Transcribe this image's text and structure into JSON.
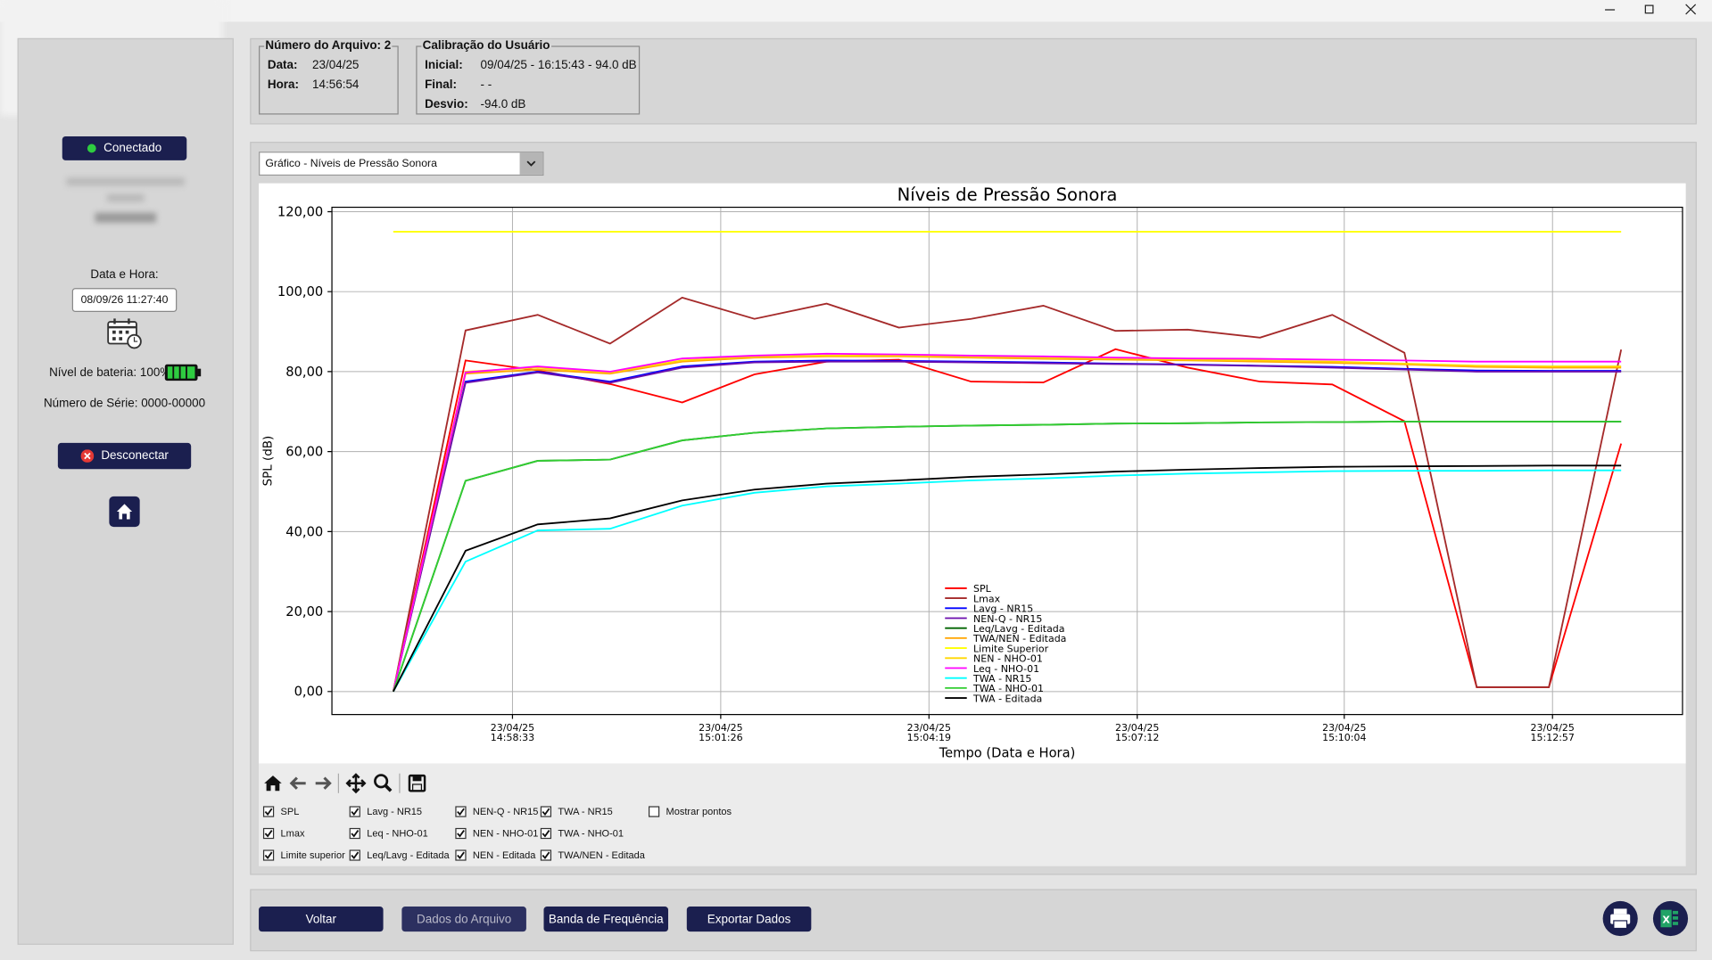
{
  "sidebar": {
    "status": "Conectado",
    "datetime_label": "Data e Hora:",
    "datetime": "08/09/26 11:27:40",
    "battery": "Nível de bateria: 100%",
    "serial": "Número de Série: 0000-00000",
    "disconnect": "Desconectar"
  },
  "file_info": {
    "title": "Número do Arquivo: 2",
    "rows": [
      [
        "Data:",
        "23/04/25"
      ],
      [
        "Hora:",
        "14:56:54"
      ]
    ]
  },
  "calibration": {
    "title": "Calibração do Usuário",
    "rows": [
      [
        "Inicial:",
        "09/04/25 - 16:15:43 - 94.0 dB"
      ],
      [
        "Final:",
        "- -"
      ],
      [
        "Desvio:",
        "-94.0 dB"
      ]
    ]
  },
  "selector": "Gráfico - Níveis de Pressão Sonora",
  "chart_data": {
    "type": "line",
    "title": "Níveis de Pressão Sonora",
    "xlabel": "Tempo (Data e Hora)",
    "ylabel": "SPL (dB)",
    "x": [
      "23/04/25 14:56:54",
      "23/04/25 14:57:54",
      "23/04/25 14:58:54",
      "23/04/25 14:59:54",
      "23/04/25 15:00:54",
      "23/04/25 15:01:54",
      "23/04/25 15:02:54",
      "23/04/25 15:03:54",
      "23/04/25 15:04:54",
      "23/04/25 15:05:54",
      "23/04/25 15:06:54",
      "23/04/25 15:07:54",
      "23/04/25 15:08:54",
      "23/04/25 15:09:54",
      "23/04/25 15:10:54",
      "23/04/25 15:11:54",
      "23/04/25 15:12:54",
      "23/04/25 15:13:54"
    ],
    "xlim": [
      "23/04/25 14:56:03",
      "23/04/25 15:14:45"
    ],
    "xticks": [
      {
        "date": "23/04/25",
        "time": "14:58:33"
      },
      {
        "date": "23/04/25",
        "time": "15:01:26"
      },
      {
        "date": "23/04/25",
        "time": "15:04:19"
      },
      {
        "date": "23/04/25",
        "time": "15:07:12"
      },
      {
        "date": "23/04/25",
        "time": "15:10:04"
      },
      {
        "date": "23/04/25",
        "time": "15:12:57"
      }
    ],
    "ylim": [
      -5.75,
      121.1
    ],
    "yticks": [
      {
        "value": 0,
        "label": "0,00"
      },
      {
        "value": 20,
        "label": "20,00"
      },
      {
        "value": 40,
        "label": "40,00"
      },
      {
        "value": 60,
        "label": "60,00"
      },
      {
        "value": 80,
        "label": "80,00"
      },
      {
        "value": 100,
        "label": "100,00"
      },
      {
        "value": 120,
        "label": "120,00"
      }
    ],
    "grid": true,
    "legend": "lower center",
    "series": [
      {
        "name": "SPL",
        "color": "#ff0000",
        "values": [
          0,
          82.8,
          80.3,
          76.9,
          72.3,
          79.3,
          82.5,
          83,
          77.5,
          77.3,
          85.6,
          81,
          77.5,
          76.8,
          67.6,
          1.1,
          1.1,
          62
        ]
      },
      {
        "name": "Lmax",
        "color": "#a52a2a",
        "values": [
          0,
          90.3,
          94.2,
          87,
          98.5,
          93.2,
          97,
          91,
          93.2,
          96.5,
          90.2,
          90.5,
          88.5,
          94.2,
          84.7,
          1.1,
          1.1,
          85.5
        ]
      },
      {
        "name": "Lavg - NR15",
        "color": "#0000ff",
        "values": [
          0,
          77.5,
          80,
          77.5,
          81.3,
          82.5,
          82.8,
          82.7,
          82.5,
          82.3,
          82,
          81.8,
          81.5,
          81.2,
          80.7,
          80.3,
          80.2,
          80.2
        ]
      },
      {
        "name": "NEN-Q - NR15",
        "color": "#6a0dad",
        "values": [
          0,
          77.2,
          79.8,
          77.2,
          81,
          82.3,
          82.5,
          82.5,
          82.3,
          82.1,
          81.9,
          81.7,
          81.4,
          81,
          80.5,
          80,
          80,
          80
        ]
      },
      {
        "name": "Leq/Lavg - Editada",
        "color": "#006400",
        "values": [
          0,
          52.7,
          57.7,
          58,
          62.8,
          64.7,
          65.8,
          66.2,
          66.5,
          66.7,
          67,
          67.1,
          67.3,
          67.4,
          67.5,
          67.5,
          67.5,
          67.5
        ]
      },
      {
        "name": "TWA/NEN - Editada",
        "color": "#ffa500",
        "values": [
          0,
          79.5,
          80.5,
          79.5,
          82.5,
          83.5,
          83.8,
          83.8,
          83.5,
          83.2,
          83,
          82.8,
          82.5,
          82.2,
          81.8,
          81.2,
          81,
          81
        ]
      },
      {
        "name": "Limite Superior",
        "color": "#ffff00",
        "values": [
          115,
          115,
          115,
          115,
          115,
          115,
          115,
          115,
          115,
          115,
          115,
          115,
          115,
          115,
          115,
          115,
          115,
          115
        ]
      },
      {
        "name": "NEN - NHO-01",
        "color": "#ffd700",
        "values": [
          0,
          80,
          81,
          79.8,
          82.8,
          83.8,
          84,
          84,
          83.8,
          83.5,
          83.3,
          83,
          82.8,
          82.5,
          82,
          81.5,
          81.3,
          81.3
        ]
      },
      {
        "name": "Leq - NHO-01",
        "color": "#ff00ff",
        "values": [
          0,
          79.8,
          81.3,
          80,
          83.3,
          84,
          84.5,
          84.3,
          84,
          83.8,
          83.5,
          83.3,
          83.2,
          83,
          82.8,
          82.5,
          82.5,
          82.5
        ]
      },
      {
        "name": "TWA - NR15",
        "color": "#00ffff",
        "values": [
          0,
          32.5,
          40.3,
          40.7,
          46.5,
          49.7,
          51.3,
          52,
          52.8,
          53.3,
          54,
          54.5,
          54.8,
          55.1,
          55.2,
          55.2,
          55.3,
          55.3
        ]
      },
      {
        "name": "TWA - NHO-01",
        "color": "#32cd32",
        "values": [
          0,
          52.7,
          57.7,
          58,
          62.8,
          64.7,
          65.8,
          66.2,
          66.5,
          66.7,
          67,
          67.1,
          67.3,
          67.4,
          67.5,
          67.5,
          67.5,
          67.5
        ]
      },
      {
        "name": "TWA - Editada",
        "color": "#000000",
        "values": [
          0,
          35.2,
          41.8,
          43.3,
          47.8,
          50.5,
          52,
          52.8,
          53.7,
          54.3,
          55,
          55.5,
          55.9,
          56.2,
          56.3,
          56.4,
          56.5,
          56.5
        ]
      }
    ]
  },
  "toggles": [
    {
      "label": "SPL",
      "checked": true
    },
    {
      "label": "Lmax",
      "checked": true
    },
    {
      "label": "Limite superior",
      "checked": true
    },
    {
      "label": "Lavg - NR15",
      "checked": true
    },
    {
      "label": "Leq - NHO-01",
      "checked": true
    },
    {
      "label": "Leq/Lavg - Editada",
      "checked": true
    },
    {
      "label": "NEN-Q - NR15",
      "checked": true
    },
    {
      "label": "NEN - NHO-01",
      "checked": true
    },
    {
      "label": "NEN - Editada",
      "checked": true
    },
    {
      "label": "TWA - NR15",
      "checked": true
    },
    {
      "label": "TWA - NHO-01",
      "checked": true
    },
    {
      "label": "TWA/NEN - Editada",
      "checked": true
    },
    {
      "label": "Mostrar pontos",
      "checked": false
    }
  ],
  "buttons": [
    "Voltar",
    "Dados do Arquivo",
    "Banda de Frequência",
    "Exportar Dados"
  ]
}
